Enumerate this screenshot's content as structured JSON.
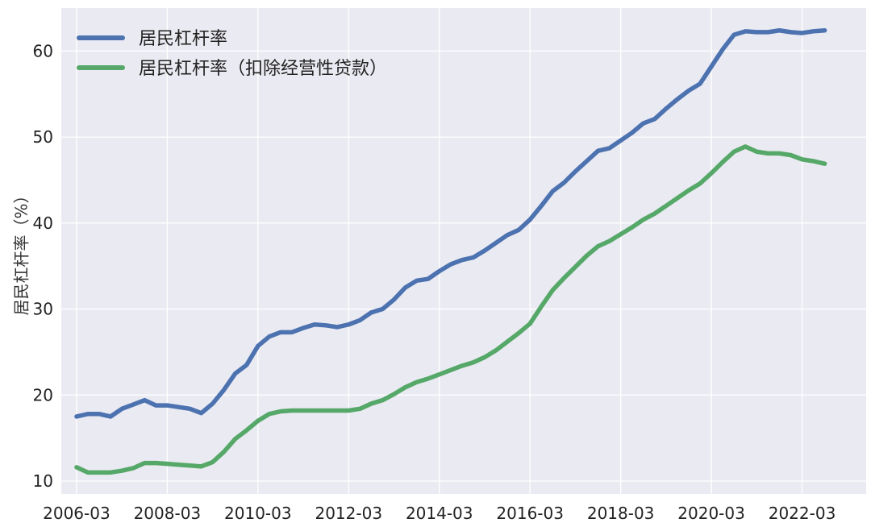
{
  "chart_data": {
    "type": "line",
    "title": "",
    "xlabel": "",
    "ylabel": "居民杠杆率（%）",
    "xlim": [
      2005.83,
      2023.58
    ],
    "ylim": [
      8.5,
      65.0
    ],
    "x_ticks": [
      "2006-03",
      "2008-03",
      "2010-03",
      "2012-03",
      "2014-03",
      "2016-03",
      "2018-03",
      "2020-03",
      "2022-03"
    ],
    "y_ticks": [
      10,
      20,
      30,
      40,
      50,
      60
    ],
    "grid": true,
    "legend_position": "top-left",
    "colors": {
      "background": "#EAEAF2",
      "grid": "#FFFFFF",
      "series1": "#4C72B0",
      "series2": "#55A868"
    },
    "series": [
      {
        "name": "居民杠杆率",
        "x": [
          "2006-03",
          "2006-06",
          "2006-09",
          "2006-12",
          "2007-03",
          "2007-06",
          "2007-09",
          "2007-12",
          "2008-03",
          "2008-06",
          "2008-09",
          "2008-12",
          "2009-03",
          "2009-06",
          "2009-09",
          "2009-12",
          "2010-03",
          "2010-06",
          "2010-09",
          "2010-12",
          "2011-03",
          "2011-06",
          "2011-09",
          "2011-12",
          "2012-03",
          "2012-06",
          "2012-09",
          "2012-12",
          "2013-03",
          "2013-06",
          "2013-09",
          "2013-12",
          "2014-03",
          "2014-06",
          "2014-09",
          "2014-12",
          "2015-03",
          "2015-06",
          "2015-09",
          "2015-12",
          "2016-03",
          "2016-06",
          "2016-09",
          "2016-12",
          "2017-03",
          "2017-06",
          "2017-09",
          "2017-12",
          "2018-03",
          "2018-06",
          "2018-09",
          "2018-12",
          "2019-03",
          "2019-06",
          "2019-09",
          "2019-12",
          "2020-03",
          "2020-06",
          "2020-09",
          "2020-12",
          "2021-03",
          "2021-06",
          "2021-09",
          "2021-12",
          "2022-03",
          "2022-06",
          "2022-09"
        ],
        "values": [
          17.5,
          17.8,
          17.8,
          17.5,
          18.4,
          18.9,
          19.4,
          18.8,
          18.8,
          18.6,
          18.4,
          17.9,
          19.0,
          20.6,
          22.5,
          23.5,
          25.7,
          26.8,
          27.3,
          27.3,
          27.8,
          28.2,
          28.1,
          27.9,
          28.2,
          28.7,
          29.6,
          30.0,
          31.1,
          32.5,
          33.3,
          33.5,
          34.4,
          35.2,
          35.7,
          36.0,
          36.8,
          37.7,
          38.6,
          39.2,
          40.4,
          42.0,
          43.7,
          44.7,
          46.0,
          47.2,
          48.4,
          48.7,
          49.6,
          50.5,
          51.6,
          52.1,
          53.3,
          54.4,
          55.4,
          56.2,
          58.2,
          60.2,
          61.9,
          62.3,
          62.2,
          62.2,
          62.4,
          62.2,
          62.1,
          62.3,
          62.4
        ]
      },
      {
        "name": "居民杠杆率（扣除经营性贷款）",
        "x": [
          "2006-03",
          "2006-06",
          "2006-09",
          "2006-12",
          "2007-03",
          "2007-06",
          "2007-09",
          "2007-12",
          "2008-03",
          "2008-06",
          "2008-09",
          "2008-12",
          "2009-03",
          "2009-06",
          "2009-09",
          "2009-12",
          "2010-03",
          "2010-06",
          "2010-09",
          "2010-12",
          "2011-03",
          "2011-06",
          "2011-09",
          "2011-12",
          "2012-03",
          "2012-06",
          "2012-09",
          "2012-12",
          "2013-03",
          "2013-06",
          "2013-09",
          "2013-12",
          "2014-03",
          "2014-06",
          "2014-09",
          "2014-12",
          "2015-03",
          "2015-06",
          "2015-09",
          "2015-12",
          "2016-03",
          "2016-06",
          "2016-09",
          "2016-12",
          "2017-03",
          "2017-06",
          "2017-09",
          "2017-12",
          "2018-03",
          "2018-06",
          "2018-09",
          "2018-12",
          "2019-03",
          "2019-06",
          "2019-09",
          "2019-12",
          "2020-03",
          "2020-06",
          "2020-09",
          "2020-12",
          "2021-03",
          "2021-06",
          "2021-09",
          "2021-12",
          "2022-03",
          "2022-06",
          "2022-09"
        ],
        "values": [
          11.6,
          11.0,
          11.0,
          11.0,
          11.2,
          11.5,
          12.1,
          12.1,
          12.0,
          11.9,
          11.8,
          11.7,
          12.2,
          13.4,
          14.9,
          15.9,
          17.0,
          17.8,
          18.1,
          18.2,
          18.2,
          18.2,
          18.2,
          18.2,
          18.2,
          18.4,
          19.0,
          19.4,
          20.1,
          20.9,
          21.5,
          21.9,
          22.4,
          22.9,
          23.4,
          23.8,
          24.4,
          25.2,
          26.2,
          27.2,
          28.3,
          30.3,
          32.2,
          33.6,
          34.9,
          36.2,
          37.3,
          37.9,
          38.7,
          39.5,
          40.4,
          41.1,
          42.0,
          42.9,
          43.8,
          44.6,
          45.8,
          47.1,
          48.3,
          48.9,
          48.3,
          48.1,
          48.1,
          47.9,
          47.4,
          47.2,
          46.9
        ]
      }
    ]
  }
}
